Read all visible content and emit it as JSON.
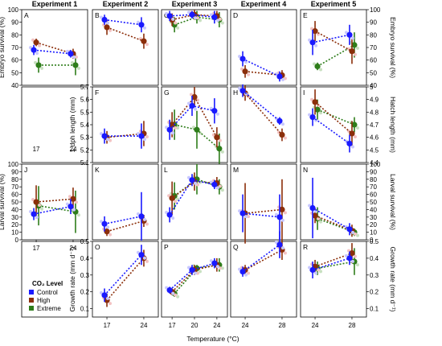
{
  "figure": {
    "experiments": [
      "Experiment 1",
      "Experiment 2",
      "Experiment 3",
      "Experiment 4",
      "Experiment 5"
    ],
    "xlabel": "Temperature (°C)",
    "legend": {
      "title": "CO₂ Level",
      "entries": [
        {
          "name": "Control",
          "color": "#1a1aff"
        },
        {
          "name": "High",
          "color": "#8b2e0a"
        },
        {
          "name": "Extreme",
          "color": "#2e7d1a"
        }
      ]
    }
  },
  "chart_data": {
    "type": "scatter",
    "series": [
      "Control",
      "High",
      "Extreme"
    ],
    "colors": {
      "Control": "#1a1aff",
      "High": "#8b2e0a",
      "Extreme": "#2e7d1a"
    },
    "rows": [
      {
        "id": "survival",
        "ylabel_left": "Embryo survival (%)",
        "ylabel_right": "Embryo survival (%)",
        "ylim": [
          40,
          100
        ],
        "ticks": [
          40,
          50,
          60,
          70,
          80,
          90,
          100
        ]
      },
      {
        "id": "length",
        "ylabel_left": "1 dph length (mm)",
        "ylabel_right": "Hatch length (mm)",
        "ylim_left": [
          5.1,
          5.7
        ],
        "ticks_left": [
          5.1,
          5.2,
          5.3,
          5.4,
          5.5,
          5.6,
          5.7
        ],
        "ylim_right": [
          4.4,
          5.0
        ],
        "ticks_right": [
          4.4,
          4.5,
          4.6,
          4.7,
          4.8,
          4.9,
          5.0
        ]
      },
      {
        "id": "larval",
        "ylabel_left": "Larval survival (%)",
        "ylabel_right": "Larval survival (%)",
        "ylim": [
          0,
          100
        ],
        "ticks": [
          0,
          10,
          20,
          30,
          40,
          50,
          60,
          70,
          80,
          90,
          100
        ]
      },
      {
        "id": "growth",
        "ylabel_left": "Growth rate (mm d⁻¹)",
        "ylabel_right": "Growth rate (mm d⁻¹)",
        "ylim": [
          0.05,
          0.5
        ],
        "ticks": [
          0.1,
          0.2,
          0.3,
          0.4,
          0.5
        ]
      }
    ],
    "columns": [
      {
        "experiment": "Experiment 1",
        "x": [
          17,
          24
        ]
      },
      {
        "experiment": "Experiment 2",
        "x": [
          17,
          24
        ]
      },
      {
        "experiment": "Experiment 3",
        "x": [
          17,
          20,
          24
        ]
      },
      {
        "experiment": "Experiment 4",
        "x": [
          24,
          28
        ]
      },
      {
        "experiment": "Experiment 5",
        "x": [
          24,
          28
        ]
      }
    ],
    "panels": [
      {
        "label": "A",
        "row": 0,
        "col": 0,
        "data": {
          "Control": {
            "y": [
              68,
              65
            ],
            "err": [
              4,
              3
            ]
          },
          "High": {
            "y": [
              74,
              65
            ],
            "err": [
              3,
              4
            ]
          },
          "Extreme": {
            "y": [
              56,
              56
            ],
            "err": [
              6,
              8
            ]
          }
        }
      },
      {
        "label": "B",
        "row": 0,
        "col": 1,
        "data": {
          "Control": {
            "y": [
              92,
              88
            ],
            "err": [
              4,
              6
            ]
          },
          "High": {
            "y": [
              86,
              75
            ],
            "err": [
              6,
              6
            ]
          }
        }
      },
      {
        "label": "C",
        "row": 0,
        "col": 2,
        "data": {
          "Control": {
            "y": [
              95,
              96,
              94
            ],
            "err": [
              4,
              3,
              5
            ]
          },
          "High": {
            "y": [
              92,
              96,
              95
            ],
            "err": [
              5,
              4,
              4
            ]
          },
          "Extreme": {
            "y": [
              88,
              94,
              92
            ],
            "err": [
              6,
              5,
              6
            ]
          }
        }
      },
      {
        "label": "D",
        "row": 0,
        "col": 3,
        "data": {
          "Control": {
            "y": [
              61,
              47
            ],
            "err": [
              6,
              4
            ]
          },
          "High": {
            "y": [
              51,
              48
            ],
            "err": [
              5,
              4
            ]
          }
        }
      },
      {
        "label": "E",
        "row": 0,
        "col": 4,
        "data": {
          "Control": {
            "y": [
              74,
              80
            ],
            "err": [
              10,
              8
            ]
          },
          "High": {
            "y": [
              83,
              67
            ],
            "err": [
              8,
              10
            ]
          },
          "Extreme": {
            "y": [
              55,
              72
            ],
            "err": [
              3,
              10
            ]
          }
        }
      },
      {
        "label": "F",
        "row": 1,
        "col": 1,
        "data": {
          "Control": {
            "y": [
              5.31,
              5.31
            ],
            "err": [
              0.06,
              0.1
            ]
          },
          "High": {
            "y": [
              5.3,
              5.33
            ],
            "err": [
              0.05,
              0.1
            ]
          }
        }
      },
      {
        "label": "G",
        "row": 1,
        "col": 2,
        "data": {
          "Control": {
            "y": [
              5.36,
              5.55,
              5.51
            ],
            "err": [
              0.08,
              0.08,
              0.1
            ]
          },
          "High": {
            "y": [
              5.4,
              5.62,
              5.3
            ],
            "err": [
              0.1,
              0.08,
              0.08
            ]
          },
          "Extreme": {
            "y": [
              5.4,
              5.36,
              5.21
            ],
            "err": [
              0.12,
              0.15,
              0.12
            ]
          }
        }
      },
      {
        "label": "H",
        "row": 1,
        "col": 3,
        "data": {
          "Control": {
            "y": [
              4.97,
              4.73
            ],
            "err": [
              0.05,
              0.03
            ]
          },
          "High": {
            "y": [
              4.95,
              4.62
            ],
            "err": [
              0.06,
              0.05
            ]
          }
        }
      },
      {
        "label": "I",
        "row": 1,
        "col": 4,
        "data": {
          "Control": {
            "y": [
              4.76,
              4.55
            ],
            "err": [
              0.07,
              0.07
            ]
          },
          "High": {
            "y": [
              4.88,
              4.63
            ],
            "err": [
              0.1,
              0.1
            ]
          },
          "Extreme": {
            "y": [
              4.82,
              4.7
            ],
            "err": [
              0.08,
              0.06
            ]
          }
        }
      },
      {
        "label": "J",
        "row": 2,
        "col": 0,
        "data": {
          "Control": {
            "y": [
              34,
              44
            ],
            "err": [
              8,
              10
            ]
          },
          "High": {
            "y": [
              50,
              54
            ],
            "err": [
              22,
              15
            ]
          },
          "Extreme": {
            "y": [
              45,
              37
            ],
            "err": [
              26,
              28
            ]
          }
        }
      },
      {
        "label": "K",
        "row": 2,
        "col": 1,
        "data": {
          "Control": {
            "y": [
              21,
              31
            ],
            "err": [
              10,
              32
            ]
          },
          "High": {
            "y": [
              11,
              25
            ],
            "err": [
              6,
              8
            ]
          },
          "Extreme": {
            "y": [
              null,
              null
            ],
            "err": [
              0,
              0
            ]
          }
        }
      },
      {
        "label": "L",
        "row": 2,
        "col": 2,
        "data": {
          "Control": {
            "y": [
              33,
              79,
              73
            ],
            "err": [
              10,
              8,
              6
            ]
          },
          "High": {
            "y": [
              55,
              77,
              75
            ],
            "err": [
              22,
              12,
              8
            ]
          },
          "Extreme": {
            "y": [
              58,
              80,
              70
            ],
            "err": [
              18,
              20,
              10
            ]
          }
        }
      },
      {
        "label": "M",
        "row": 2,
        "col": 3,
        "data": {
          "Control": {
            "y": [
              35,
              30
            ],
            "err": [
              25,
              30
            ]
          },
          "High": {
            "y": [
              35,
              40
            ],
            "err": [
              40,
              40
            ]
          }
        }
      },
      {
        "label": "N",
        "row": 2,
        "col": 4,
        "data": {
          "Control": {
            "y": [
              42,
              14
            ],
            "err": [
              40,
              8
            ]
          },
          "High": {
            "y": [
              32,
              12
            ],
            "err": [
              10,
              8
            ]
          },
          "Extreme": {
            "y": [
              28,
              10
            ],
            "err": [
              15,
              5
            ]
          }
        }
      },
      {
        "label": "O",
        "row": 3,
        "col": 1,
        "data": {
          "Control": {
            "y": [
              0.18,
              0.42
            ],
            "err": [
              0.04,
              0.06
            ]
          },
          "High": {
            "y": [
              0.15,
              0.4
            ],
            "err": [
              0.04,
              0.05
            ]
          }
        }
      },
      {
        "label": "P",
        "row": 3,
        "col": 2,
        "data": {
          "Control": {
            "y": [
              0.21,
              0.33,
              0.37
            ],
            "err": [
              0.02,
              0.03,
              0.03
            ]
          },
          "High": {
            "y": [
              0.2,
              0.33,
              0.36
            ],
            "err": [
              0.02,
              0.03,
              0.04
            ]
          },
          "Extreme": {
            "y": [
              0.19,
              0.34,
              0.36
            ],
            "err": [
              0.02,
              0.02,
              0.04
            ]
          }
        }
      },
      {
        "label": "Q",
        "row": 3,
        "col": 3,
        "data": {
          "Control": {
            "y": [
              0.32,
              0.48
            ],
            "err": [
              0.03,
              0.08
            ]
          },
          "High": {
            "y": [
              0.33,
              0.45
            ],
            "err": [
              0.03,
              0.06
            ]
          }
        }
      },
      {
        "label": "R",
        "row": 3,
        "col": 4,
        "data": {
          "Control": {
            "y": [
              0.33,
              0.4
            ],
            "err": [
              0.05,
              0.04
            ]
          },
          "High": {
            "y": [
              0.35,
              0.43
            ],
            "err": [
              0.04,
              0.06
            ]
          },
          "Extreme": {
            "y": [
              0.34,
              0.38
            ],
            "err": [
              0.04,
              0.08
            ]
          }
        }
      }
    ],
    "empty_panels": [
      {
        "row": 1,
        "col": 0,
        "xticks": [
          "17",
          "24"
        ]
      },
      {
        "row": 3,
        "col": 0
      }
    ]
  }
}
